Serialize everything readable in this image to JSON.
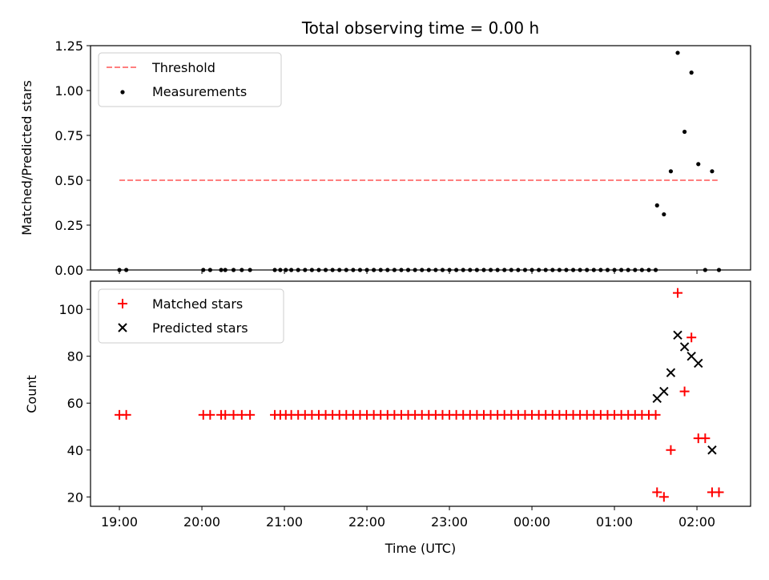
{
  "chart_data": [
    {
      "type": "scatter",
      "title": "Total observing time = 0.00 h",
      "xlabel": "",
      "ylabel": "Matched/Predicted stars",
      "ylim": [
        0,
        1.25
      ],
      "yticks": [
        "0.00",
        "0.25",
        "0.50",
        "0.75",
        "1.00",
        "1.25"
      ],
      "legend_position": "upper-left",
      "series": [
        {
          "name": "Threshold",
          "kind": "line",
          "style": "dashed",
          "color": "#ff7f7f",
          "x": [
            "19:00",
            "02:15"
          ],
          "y": [
            0.5,
            0.5
          ]
        },
        {
          "name": "Measurements",
          "kind": "scatter",
          "marker": "dot",
          "color": "#000000",
          "x": [
            "19:00",
            "19:05",
            "20:01",
            "20:06",
            "20:14",
            "20:17",
            "20:23",
            "20:29",
            "20:35",
            "20:53",
            "20:57",
            "21:01",
            "21:05",
            "21:10",
            "21:15",
            "21:20",
            "21:25",
            "21:30",
            "21:35",
            "21:40",
            "21:45",
            "21:50",
            "21:55",
            "22:00",
            "22:05",
            "22:10",
            "22:15",
            "22:20",
            "22:25",
            "22:30",
            "22:35",
            "22:40",
            "22:45",
            "22:50",
            "22:55",
            "23:00",
            "23:05",
            "23:10",
            "23:15",
            "23:20",
            "23:25",
            "23:30",
            "23:35",
            "23:40",
            "23:45",
            "23:50",
            "23:55",
            "00:00",
            "00:05",
            "00:10",
            "00:15",
            "00:20",
            "00:25",
            "00:30",
            "00:35",
            "00:40",
            "00:45",
            "00:50",
            "00:55",
            "01:00",
            "01:05",
            "01:10",
            "01:15",
            "01:20",
            "01:25",
            "01:30",
            "01:31",
            "01:36",
            "01:41",
            "01:46",
            "01:51",
            "01:56",
            "02:01",
            "02:06",
            "02:11",
            "02:16"
          ],
          "y": [
            0,
            0,
            0,
            0,
            0,
            0,
            0,
            0,
            0,
            0,
            0,
            0,
            0,
            0,
            0,
            0,
            0,
            0,
            0,
            0,
            0,
            0,
            0,
            0,
            0,
            0,
            0,
            0,
            0,
            0,
            0,
            0,
            0,
            0,
            0,
            0,
            0,
            0,
            0,
            0,
            0,
            0,
            0,
            0,
            0,
            0,
            0,
            0,
            0,
            0,
            0,
            0,
            0,
            0,
            0,
            0,
            0,
            0,
            0,
            0,
            0,
            0,
            0,
            0,
            0,
            0,
            0.36,
            0.31,
            0.55,
            1.21,
            0.77,
            1.1,
            0.59,
            0,
            0.55,
            0
          ]
        }
      ]
    },
    {
      "type": "scatter",
      "title": "",
      "xlabel": "Time (UTC)",
      "ylabel": "Count",
      "ylim": [
        16,
        112
      ],
      "xlim": [
        "18:39",
        "02:39"
      ],
      "xticks": [
        "19:00",
        "20:00",
        "21:00",
        "22:00",
        "23:00",
        "00:00",
        "01:00",
        "02:00"
      ],
      "yticks": [
        "20",
        "40",
        "60",
        "80",
        "100"
      ],
      "legend_position": "upper-left",
      "series": [
        {
          "name": "Matched stars",
          "kind": "scatter",
          "marker": "plus",
          "color": "#ff0000",
          "x": [
            "19:00",
            "19:05",
            "20:01",
            "20:06",
            "20:14",
            "20:17",
            "20:23",
            "20:29",
            "20:35",
            "20:53",
            "20:57",
            "21:01",
            "21:05",
            "21:10",
            "21:15",
            "21:20",
            "21:25",
            "21:30",
            "21:35",
            "21:40",
            "21:45",
            "21:50",
            "21:55",
            "22:00",
            "22:05",
            "22:10",
            "22:15",
            "22:20",
            "22:25",
            "22:30",
            "22:35",
            "22:40",
            "22:45",
            "22:50",
            "22:55",
            "23:00",
            "23:05",
            "23:10",
            "23:15",
            "23:20",
            "23:25",
            "23:30",
            "23:35",
            "23:40",
            "23:45",
            "23:50",
            "23:55",
            "00:00",
            "00:05",
            "00:10",
            "00:15",
            "00:20",
            "00:25",
            "00:30",
            "00:35",
            "00:40",
            "00:45",
            "00:50",
            "00:55",
            "01:00",
            "01:05",
            "01:10",
            "01:15",
            "01:20",
            "01:25",
            "01:30",
            "01:31",
            "01:36",
            "01:41",
            "01:46",
            "01:51",
            "01:56",
            "02:01",
            "02:06",
            "02:11",
            "02:16"
          ],
          "y": [
            55,
            55,
            55,
            55,
            55,
            55,
            55,
            55,
            55,
            55,
            55,
            55,
            55,
            55,
            55,
            55,
            55,
            55,
            55,
            55,
            55,
            55,
            55,
            55,
            55,
            55,
            55,
            55,
            55,
            55,
            55,
            55,
            55,
            55,
            55,
            55,
            55,
            55,
            55,
            55,
            55,
            55,
            55,
            55,
            55,
            55,
            55,
            55,
            55,
            55,
            55,
            55,
            55,
            55,
            55,
            55,
            55,
            55,
            55,
            55,
            55,
            55,
            55,
            55,
            55,
            55,
            22,
            20,
            40,
            107,
            65,
            88,
            45,
            45,
            22,
            22
          ]
        },
        {
          "name": "Predicted stars",
          "kind": "scatter",
          "marker": "x",
          "color": "#000000",
          "x": [
            "01:31",
            "01:36",
            "01:41",
            "01:46",
            "01:51",
            "01:56",
            "02:01",
            "02:11"
          ],
          "y": [
            62,
            65,
            73,
            89,
            84,
            80,
            77,
            40
          ]
        }
      ]
    }
  ]
}
